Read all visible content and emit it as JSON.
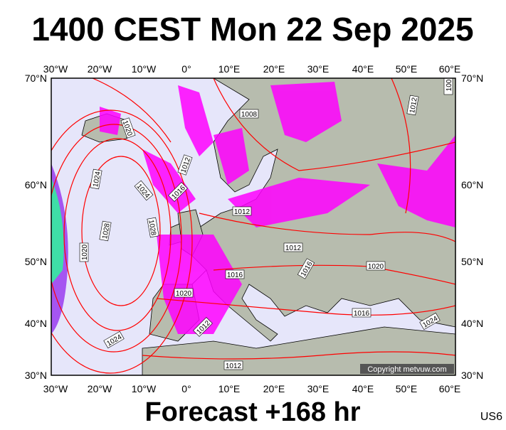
{
  "title": "1400 CEST Mon 22 Sep 2025",
  "footer": "Forecast +168 hr",
  "code": "US6",
  "copyright": "Copyright metvuw.com",
  "longitude_labels": [
    "30°W",
    "20°W",
    "10°W",
    "0°",
    "10°E",
    "20°E",
    "30°E",
    "40°E",
    "50°E",
    "60°E"
  ],
  "latitude_labels": [
    "70°N",
    "60°N",
    "50°N",
    "40°N",
    "30°N"
  ],
  "isobar_labels": [
    "1020",
    "1024",
    "1012",
    "1016",
    "1024",
    "1028",
    "1028",
    "1020",
    "1008",
    "1012",
    "1012",
    "1016",
    "1020",
    "1016",
    "1020",
    "1016",
    "1024",
    "1012",
    "1024",
    "1012",
    "1012",
    "100"
  ]
}
